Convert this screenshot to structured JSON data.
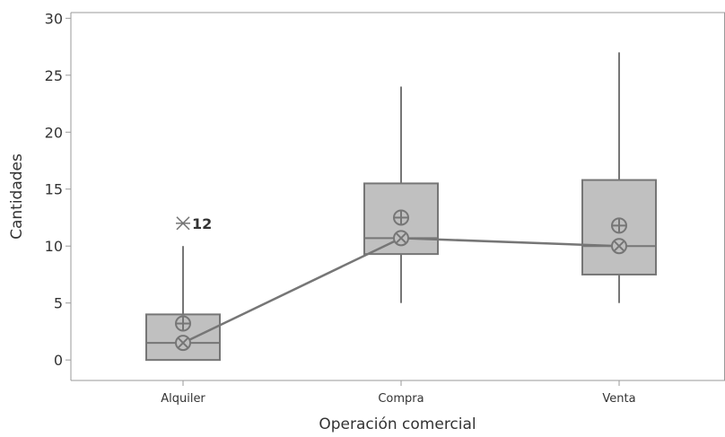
{
  "chart_data": {
    "type": "boxplot",
    "xlabel": "Operación comercial",
    "ylabel": "Cantidades",
    "ylim": [
      -1.8,
      30.5
    ],
    "yticks": [
      0,
      5,
      10,
      15,
      20,
      25,
      30
    ],
    "categories": [
      "Alquiler",
      "Compra",
      "Venta"
    ],
    "boxes": [
      {
        "category": "Alquiler",
        "whisker_low": 0,
        "q1": 0,
        "median": 1.5,
        "q3": 4,
        "whisker_high": 10,
        "mean": 3.2,
        "outliers": [
          {
            "value": 12,
            "label": "12"
          }
        ]
      },
      {
        "category": "Compra",
        "whisker_low": 5,
        "q1": 9.3,
        "median": 10.7,
        "q3": 15.5,
        "whisker_high": 24,
        "mean": 12.5,
        "outliers": []
      },
      {
        "category": "Venta",
        "whisker_low": 5,
        "q1": 7.5,
        "median": 10,
        "q3": 15.8,
        "whisker_high": 27,
        "mean": 11.8,
        "outliers": []
      }
    ],
    "median_connect_line": true,
    "colors": {
      "box_fill": "#c0c0c0",
      "stroke": "#767676",
      "axis": "#9a9a9a"
    }
  }
}
